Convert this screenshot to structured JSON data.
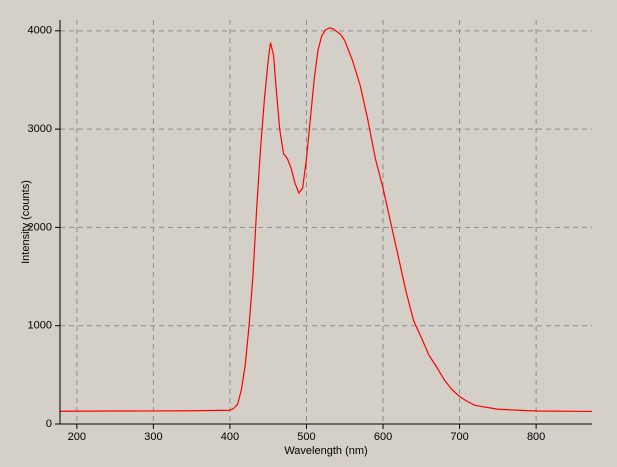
{
  "chart_data": {
    "type": "line",
    "x_label": "Wavelength (nm)",
    "y_label": "Intensity (counts)",
    "xlim": [
      178,
      873
    ],
    "ylim": [
      0,
      4110
    ],
    "xticks": [
      200,
      300,
      400,
      500,
      600,
      700,
      800
    ],
    "yticks": [
      0,
      1000,
      2000,
      3000,
      4000
    ],
    "grid": true,
    "series": [
      {
        "color": "#ff0000",
        "x": [
          178,
          250,
          300,
          350,
          400,
          405,
          410,
          415,
          420,
          425,
          430,
          435,
          440,
          445,
          450,
          453,
          457,
          460,
          465,
          470,
          475,
          480,
          485,
          490,
          495,
          500,
          505,
          510,
          515,
          520,
          525,
          530,
          535,
          540,
          545,
          550,
          555,
          560,
          570,
          580,
          590,
          600,
          610,
          620,
          630,
          640,
          650,
          660,
          670,
          680,
          690,
          700,
          710,
          720,
          750,
          800,
          873
        ],
        "values": [
          130,
          132,
          133,
          135,
          140,
          160,
          200,
          350,
          600,
          1000,
          1500,
          2200,
          2800,
          3300,
          3700,
          3880,
          3750,
          3450,
          3000,
          2750,
          2700,
          2600,
          2450,
          2350,
          2400,
          2700,
          3100,
          3500,
          3800,
          3950,
          4010,
          4030,
          4020,
          3990,
          3960,
          3900,
          3800,
          3700,
          3450,
          3100,
          2700,
          2400,
          2050,
          1700,
          1350,
          1050,
          880,
          700,
          580,
          450,
          350,
          280,
          230,
          190,
          150,
          132,
          128
        ]
      }
    ]
  }
}
